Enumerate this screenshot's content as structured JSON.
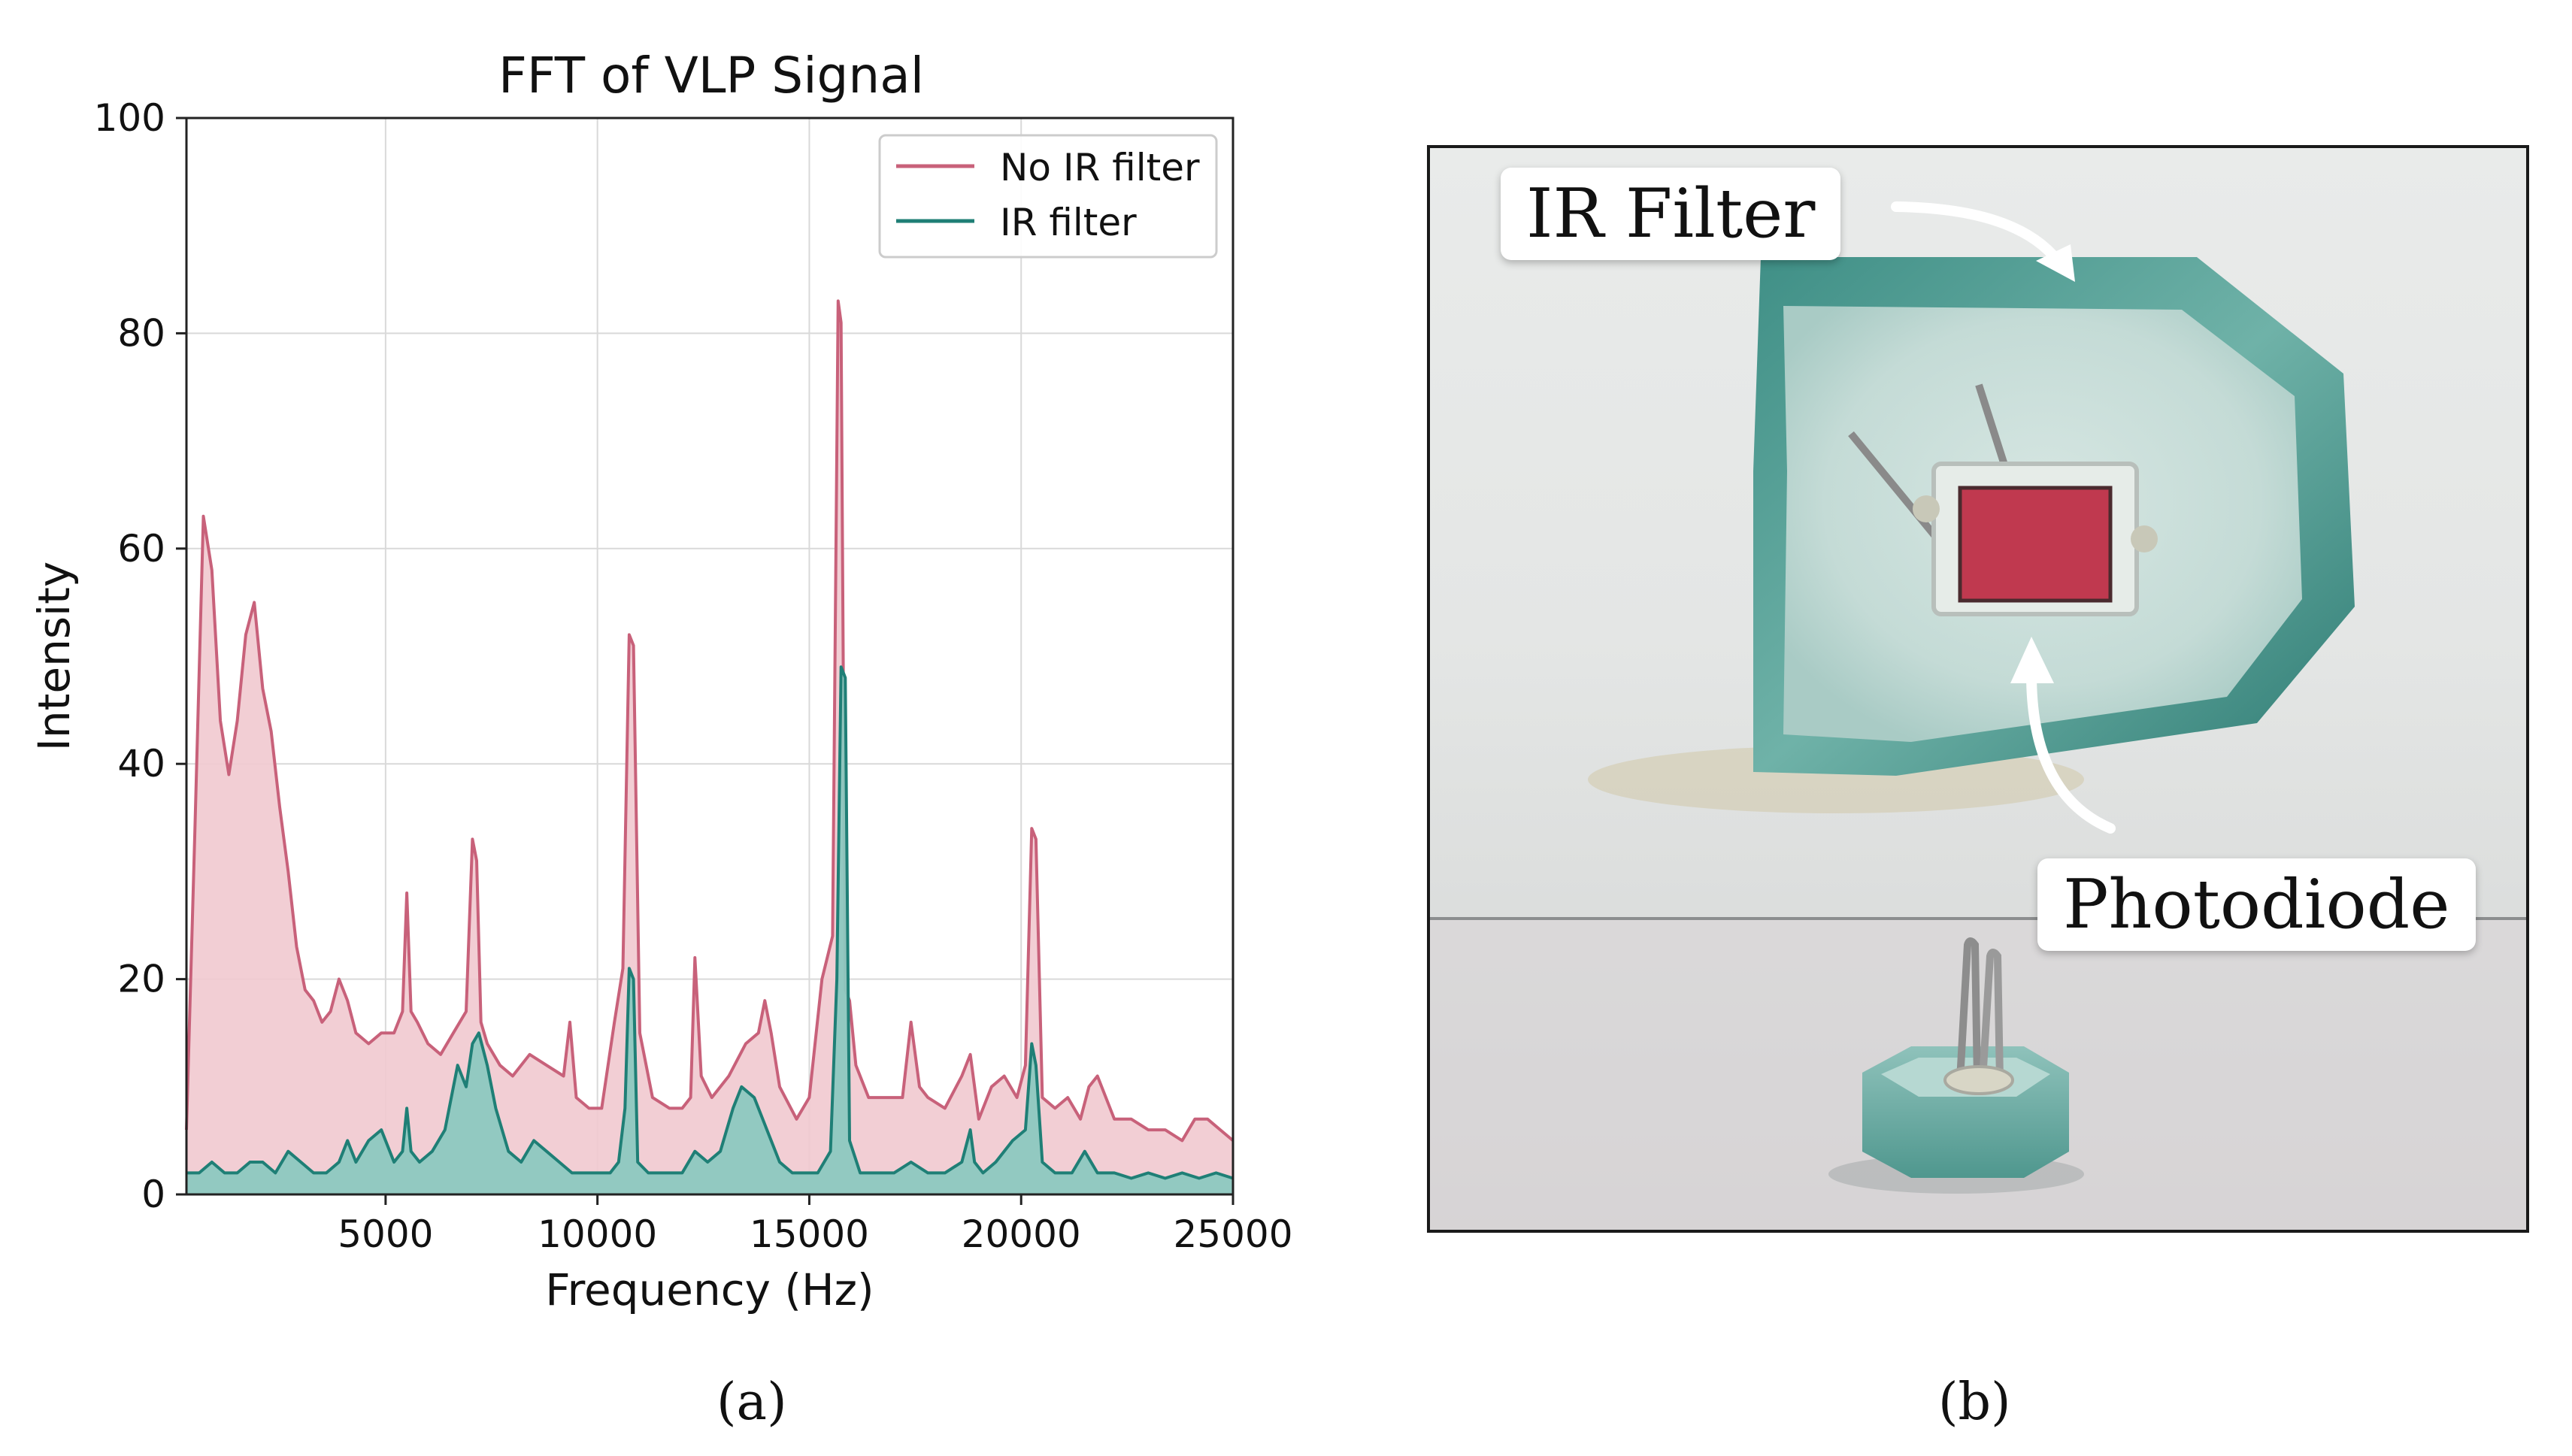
{
  "chart_data": {
    "type": "area",
    "title": "FFT of VLP Signal",
    "xlabel": "Frequency (Hz)",
    "ylabel": "Intensity",
    "xlim": [
      300,
      25000
    ],
    "ylim": [
      0,
      100
    ],
    "grid": true,
    "legend_position": "top-right",
    "xticks": [
      5000,
      10000,
      15000,
      20000,
      25000
    ],
    "yticks": [
      0,
      20,
      40,
      60,
      80,
      100
    ],
    "series": [
      {
        "name": "No IR filter",
        "color": "#c8617a",
        "fill": "#f1c9cf",
        "x": [
          300,
          500,
          700,
          900,
          1100,
          1300,
          1500,
          1700,
          1900,
          2100,
          2300,
          2500,
          2700,
          2900,
          3100,
          3300,
          3500,
          3700,
          3900,
          4100,
          4300,
          4600,
          4900,
          5200,
          5400,
          5500,
          5600,
          5750,
          6000,
          6300,
          6600,
          6900,
          7050,
          7150,
          7250,
          7400,
          7700,
          8000,
          8400,
          8800,
          9200,
          9350,
          9500,
          9800,
          10100,
          10400,
          10600,
          10750,
          10850,
          11000,
          11300,
          11700,
          12000,
          12200,
          12300,
          12450,
          12700,
          13100,
          13500,
          13800,
          13950,
          14100,
          14300,
          14700,
          15000,
          15300,
          15550,
          15680,
          15750,
          15850,
          15950,
          16100,
          16400,
          16800,
          17200,
          17400,
          17600,
          17800,
          18200,
          18600,
          18800,
          19000,
          19300,
          19600,
          19900,
          20100,
          20250,
          20350,
          20500,
          20800,
          21100,
          21400,
          21600,
          21800,
          22200,
          22600,
          23000,
          23400,
          23800,
          24100,
          24400,
          24700,
          25000
        ],
        "values": [
          6,
          34,
          63,
          58,
          44,
          39,
          44,
          52,
          55,
          47,
          43,
          36,
          30,
          23,
          19,
          18,
          16,
          17,
          20,
          18,
          15,
          14,
          15,
          15,
          17,
          28,
          17,
          16,
          14,
          13,
          15,
          17,
          33,
          31,
          16,
          14,
          12,
          11,
          13,
          12,
          11,
          16,
          9,
          8,
          8,
          16,
          21,
          52,
          51,
          15,
          9,
          8,
          8,
          9,
          22,
          11,
          9,
          11,
          14,
          15,
          18,
          15,
          10,
          7,
          9,
          20,
          24,
          83,
          81,
          19,
          18,
          12,
          9,
          9,
          9,
          16,
          10,
          9,
          8,
          11,
          13,
          7,
          10,
          11,
          9,
          12,
          34,
          33,
          9,
          8,
          9,
          7,
          10,
          11,
          7,
          7,
          6,
          6,
          5,
          7,
          7,
          6,
          5
        ]
      },
      {
        "name": "IR filter",
        "color": "#1f7f76",
        "fill": "#8cc8c0",
        "x": [
          300,
          600,
          900,
          1200,
          1500,
          1800,
          2100,
          2400,
          2700,
          3000,
          3300,
          3600,
          3900,
          4100,
          4300,
          4600,
          4900,
          5200,
          5400,
          5500,
          5600,
          5800,
          6100,
          6400,
          6700,
          6900,
          7050,
          7200,
          7400,
          7600,
          7900,
          8200,
          8500,
          8800,
          9100,
          9400,
          9700,
          10000,
          10300,
          10500,
          10650,
          10750,
          10850,
          10950,
          11200,
          11600,
          12000,
          12300,
          12600,
          12900,
          13200,
          13400,
          13700,
          14000,
          14300,
          14600,
          14900,
          15200,
          15500,
          15650,
          15750,
          15850,
          15950,
          16200,
          16600,
          17000,
          17400,
          17800,
          18200,
          18600,
          18800,
          18900,
          19100,
          19400,
          19800,
          20100,
          20250,
          20350,
          20500,
          20800,
          21200,
          21500,
          21800,
          22200,
          22600,
          23000,
          23400,
          23800,
          24200,
          24600,
          25000
        ],
        "values": [
          2,
          2,
          3,
          2,
          2,
          3,
          3,
          2,
          4,
          3,
          2,
          2,
          3,
          5,
          3,
          5,
          6,
          3,
          4,
          8,
          4,
          3,
          4,
          6,
          12,
          10,
          14,
          15,
          12,
          8,
          4,
          3,
          5,
          4,
          3,
          2,
          2,
          2,
          2,
          3,
          8,
          21,
          20,
          3,
          2,
          2,
          2,
          4,
          3,
          4,
          8,
          10,
          9,
          6,
          3,
          2,
          2,
          2,
          4,
          20,
          49,
          48,
          5,
          2,
          2,
          2,
          3,
          2,
          2,
          3,
          6,
          3,
          2,
          3,
          5,
          6,
          14,
          12,
          3,
          2,
          2,
          4,
          2,
          2,
          1.5,
          2,
          1.5,
          2,
          1.5,
          2,
          1.5
        ]
      }
    ]
  },
  "panel_labels": {
    "a": "(a)",
    "b": "(b)"
  },
  "photo": {
    "callout_ir_filter": "IR Filter",
    "callout_photodiode": "Photodiode"
  }
}
